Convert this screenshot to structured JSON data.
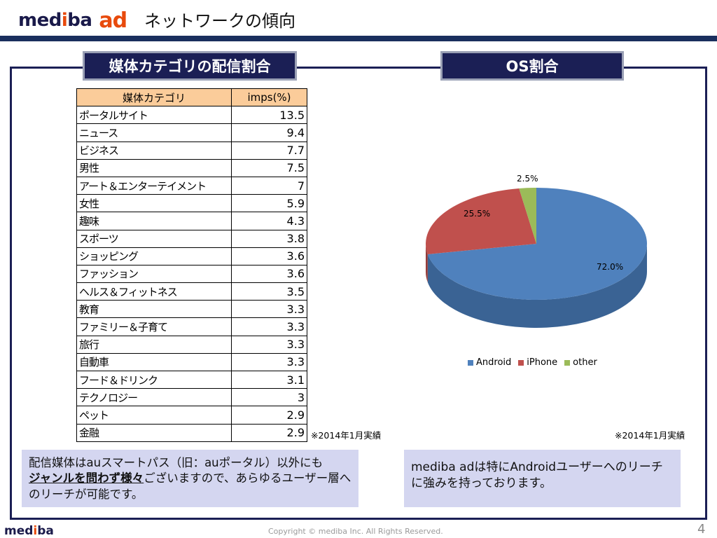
{
  "header": {
    "logo_text_1": "med",
    "logo_text_i": "i",
    "logo_text_2": "ba",
    "logo_ad": "ad",
    "title": "ネットワークの傾向"
  },
  "tabs": {
    "left": "媒体カテゴリの配信割合",
    "right": "OS割合"
  },
  "table": {
    "headers": [
      "媒体カテゴリ",
      "imps(%)"
    ],
    "rows": [
      {
        "name": "ポータルサイト",
        "value": "13.5"
      },
      {
        "name": "ニュース",
        "value": "9.4"
      },
      {
        "name": "ビジネス",
        "value": "7.7"
      },
      {
        "name": "男性",
        "value": "7.5"
      },
      {
        "name": "アート＆エンターテイメント",
        "value": "7"
      },
      {
        "name": "女性",
        "value": "5.9"
      },
      {
        "name": "趣味",
        "value": "4.3"
      },
      {
        "name": "スポーツ",
        "value": "3.8"
      },
      {
        "name": "ショッピング",
        "value": "3.6"
      },
      {
        "name": "ファッション",
        "value": "3.6"
      },
      {
        "name": "ヘルス＆フィットネス",
        "value": "3.5"
      },
      {
        "name": "教育",
        "value": "3.3"
      },
      {
        "name": "ファミリー＆子育て",
        "value": "3.3"
      },
      {
        "name": "旅行",
        "value": "3.3"
      },
      {
        "name": "自動車",
        "value": "3.3"
      },
      {
        "name": "フード＆ドリンク",
        "value": "3.1"
      },
      {
        "name": "テクノロジー",
        "value": "3"
      },
      {
        "name": "ペット",
        "value": "2.9"
      },
      {
        "name": "金融",
        "value": "2.9"
      }
    ]
  },
  "notes": {
    "left": "※2014年1月実績",
    "right": "※2014年1月実績"
  },
  "chart_data": {
    "type": "pie",
    "categories": [
      "Android",
      "iPhone",
      "other"
    ],
    "values": [
      72.0,
      25.5,
      2.5
    ],
    "labels": [
      "72.0%",
      "25.5%",
      "2.5%"
    ],
    "colors": [
      "#4f81bd",
      "#c0504d",
      "#9bbb59"
    ],
    "legend_position": "bottom",
    "style": "3d"
  },
  "boxes": {
    "left_line1": "配信媒体はauスマートパス（旧：auポータル）以外にも",
    "left_emph": "ジャンルを問わず様々",
    "left_line2_rest": "ございますので、あらゆるユーザー層へ",
    "left_line3": "のリーチが可能です。",
    "right_line1": "mediba adは特にAndroidユーザーへのリーチ",
    "right_line2": "に強みを持っております。"
  },
  "footer": {
    "logo_1": "med",
    "logo_i": "i",
    "logo_2": "ba",
    "copyright": "Copyright © mediba Inc. All Rights Reserved.",
    "page": "4"
  }
}
